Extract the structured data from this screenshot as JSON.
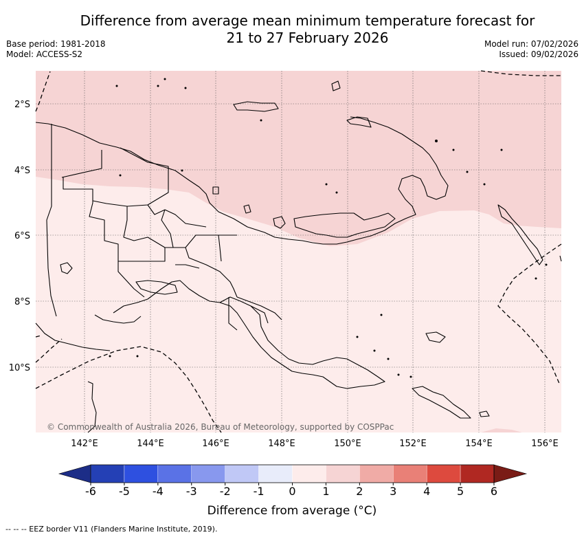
{
  "title_line1": "Difference from average mean minimum temperature forecast for",
  "title_line2": "21 to 27 February 2026",
  "base_period": "Base period: 1981-2018",
  "model": "Model: ACCESS-S2",
  "model_run": "Model run: 07/02/2026",
  "issued": "Issued: 09/02/2026",
  "copyright": "© Commonwealth of Australia 2026, Bureau of Meteorology, supported by COSPPac",
  "lat_labels": [
    "2°S",
    "4°S",
    "6°S",
    "8°S",
    "10°S"
  ],
  "lon_labels": [
    "142°E",
    "144°E",
    "146°E",
    "148°E",
    "150°E",
    "152°E",
    "154°E",
    "156°E"
  ],
  "colorbar": {
    "ticks": [
      "-6",
      "-5",
      "-4",
      "-3",
      "-2",
      "-1",
      "0",
      "1",
      "2",
      "3",
      "4",
      "5",
      "6"
    ],
    "colors": [
      "#2440b5",
      "#2e50e0",
      "#5a72e6",
      "#8898ee",
      "#c0c8f6",
      "#e8ecfa",
      "#fdeceb",
      "#f6d4d4",
      "#f0aba6",
      "#e98077",
      "#dd4a3e",
      "#b02822"
    ],
    "under_color": "#1c2d87",
    "over_color": "#7a1c16",
    "label": "Difference from average (°C)"
  },
  "fill_colors": {
    "zone_0_1": "#fdeceb",
    "zone_1_2": "#f6d4d4"
  },
  "eez_legend": "-- -- -- EEZ border V11 (Flanders Marine Institute, 2019)."
}
